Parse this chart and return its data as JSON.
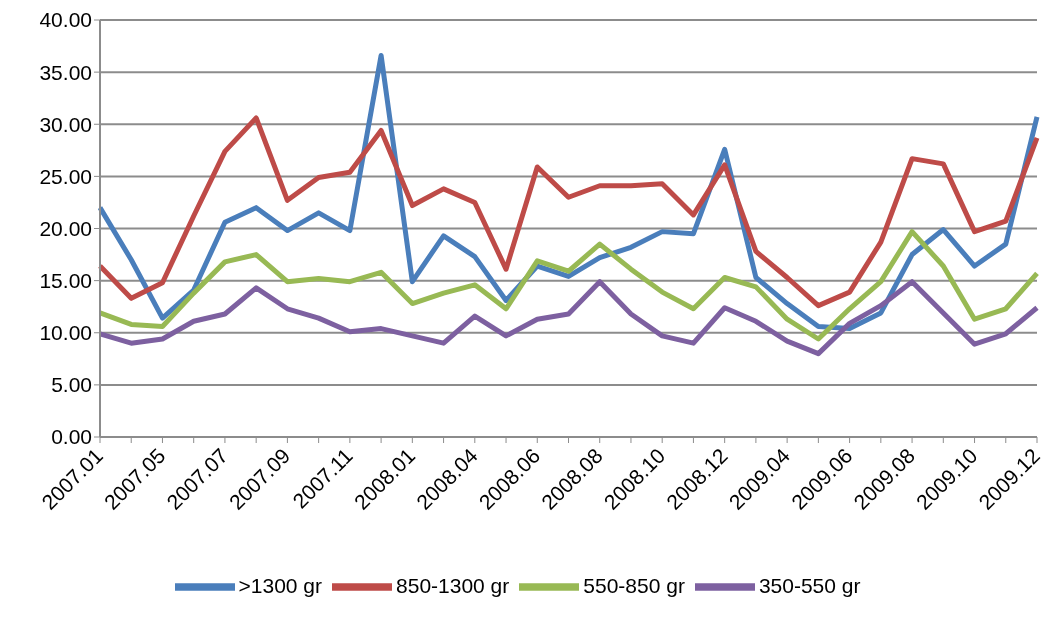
{
  "chart_data": {
    "type": "line",
    "categories": [
      "2007.01",
      null,
      "2007.05",
      null,
      "2007.07",
      null,
      "2007.09",
      null,
      "2007.11",
      null,
      "2008.01",
      null,
      "2008.04",
      null,
      "2008.06",
      null,
      "2008.08",
      null,
      "2008.10",
      null,
      "2008.12",
      null,
      "2009.04",
      null,
      "2009.06",
      null,
      "2009.08",
      null,
      "2009.10",
      null,
      "2009.12"
    ],
    "series": [
      {
        "name": ">1300 gr",
        "color": "#4a7ebb",
        "values": [
          22.0,
          17.0,
          11.4,
          14.1,
          20.6,
          22.0,
          19.8,
          21.5,
          19.8,
          36.6,
          14.9,
          19.3,
          17.3,
          13.1,
          16.4,
          15.4,
          17.2,
          18.2,
          19.7,
          19.5,
          27.6,
          15.3,
          12.8,
          10.6,
          10.4,
          11.9,
          17.5,
          19.9,
          16.4,
          18.5,
          30.7
        ]
      },
      {
        "name": "850-1300 gr",
        "color": "#be4b48",
        "values": [
          16.4,
          13.3,
          14.8,
          21.2,
          27.4,
          30.6,
          22.7,
          24.9,
          25.4,
          29.4,
          22.2,
          23.8,
          22.5,
          16.1,
          25.9,
          23.0,
          24.1,
          24.1,
          24.3,
          21.3,
          26.1,
          17.8,
          15.3,
          12.6,
          13.9,
          18.7,
          26.7,
          26.2,
          19.7,
          20.7,
          28.7
        ]
      },
      {
        "name": "550-850 gr",
        "color": "#98b954",
        "values": [
          11.9,
          10.8,
          10.6,
          13.8,
          16.8,
          17.5,
          14.9,
          15.2,
          14.9,
          15.8,
          12.8,
          13.8,
          14.6,
          12.3,
          16.9,
          15.9,
          18.5,
          16.1,
          13.9,
          12.3,
          15.3,
          14.4,
          11.3,
          9.4,
          12.3,
          14.9,
          19.7,
          16.4,
          11.3,
          12.3,
          15.7
        ]
      },
      {
        "name": "350-550 gr",
        "color": "#7d60a0",
        "values": [
          9.9,
          9.0,
          9.4,
          11.1,
          11.8,
          14.3,
          12.3,
          11.4,
          10.1,
          10.4,
          9.7,
          9.0,
          11.6,
          9.7,
          11.3,
          11.8,
          14.9,
          11.8,
          9.7,
          9.0,
          12.4,
          11.1,
          9.2,
          8.0,
          10.9,
          12.6,
          14.9,
          11.9,
          8.9,
          9.9,
          12.4
        ]
      }
    ],
    "ylim": [
      0,
      40
    ],
    "yticks": [
      {
        "value": 0,
        "label": "0.00"
      },
      {
        "value": 5,
        "label": "5.00"
      },
      {
        "value": 10,
        "label": "10.00"
      },
      {
        "value": 15,
        "label": "15.00"
      },
      {
        "value": 20,
        "label": "20.00"
      },
      {
        "value": 25,
        "label": "25.00"
      },
      {
        "value": 30,
        "label": "30.00"
      },
      {
        "value": 35,
        "label": "35.00"
      },
      {
        "value": 40,
        "label": "40.00"
      }
    ],
    "grid": "y",
    "legend": "bottom",
    "marker": "none",
    "line_style": "solid"
  }
}
